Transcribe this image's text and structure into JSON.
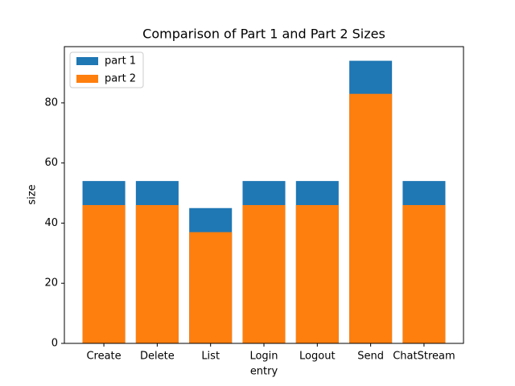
{
  "chart_data": {
    "type": "bar",
    "title": "Comparison of Part 1 and Part 2 Sizes",
    "x_label": "entry",
    "y_label": "size",
    "categories": [
      "Create",
      "Delete",
      "List",
      "Login",
      "Logout",
      "Send",
      "ChatStream"
    ],
    "series": [
      {
        "name": "part 1",
        "color": "#1f77b4",
        "values": [
          54,
          54,
          45,
          54,
          54,
          94,
          54
        ]
      },
      {
        "name": "part 2",
        "color": "#ff7f0e",
        "values": [
          46,
          46,
          37,
          46,
          46,
          83,
          46
        ]
      }
    ],
    "ylim": [
      0,
      98.7
    ],
    "yticks": [
      0,
      20,
      40,
      60,
      80
    ],
    "legend": "upper left"
  }
}
